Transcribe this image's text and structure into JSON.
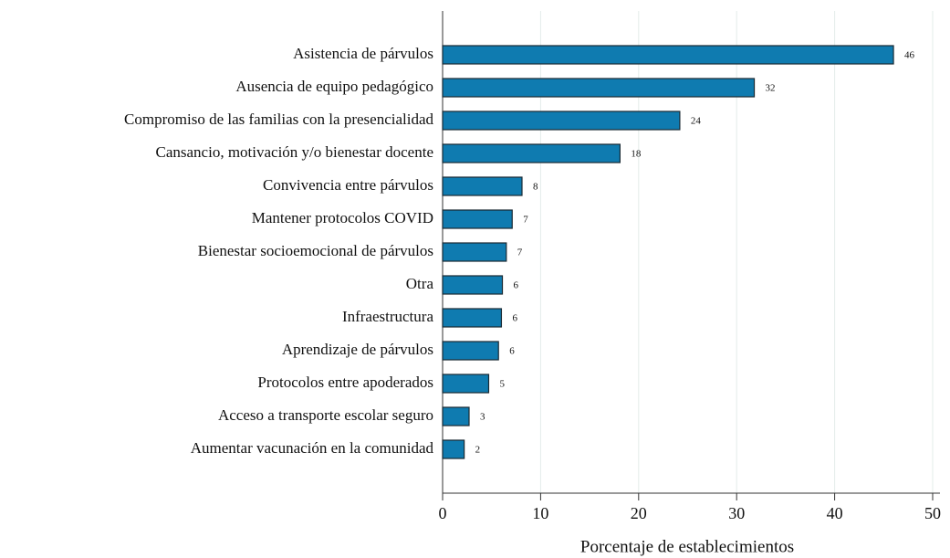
{
  "chart_data": {
    "type": "bar",
    "orientation": "horizontal",
    "x_label": "Porcentaje de establecimientos",
    "categories": [
      "Asistencia de párvulos",
      "Ausencia de equipo pedagógico",
      "Compromiso de las familias con la presencialidad",
      "Cansancio, motivación y/o bienestar docente",
      "Convivencia entre párvulos",
      "Mantener protocolos COVID",
      "Bienestar socioemocional de párvulos",
      "Otra",
      "Infraestructura",
      "Aprendizaje de párvulos",
      "Protocolos entre apoderados",
      "Acceso a transporte escolar seguro",
      "Aumentar vacunación en la comunidad"
    ],
    "values": [
      46.0,
      31.8,
      24.2,
      18.1,
      8.1,
      7.1,
      6.5,
      6.1,
      6.0,
      5.7,
      4.7,
      2.7,
      2.2
    ],
    "value_labels": [
      "46",
      "32",
      "24",
      "18",
      "8",
      "7",
      "7",
      "6",
      "6",
      "6",
      "5",
      "3",
      "2"
    ],
    "color": "#0f7bb0",
    "xlim": [
      0,
      50
    ],
    "xticks": [
      0,
      10,
      20,
      30,
      40,
      50
    ],
    "grid": true
  }
}
